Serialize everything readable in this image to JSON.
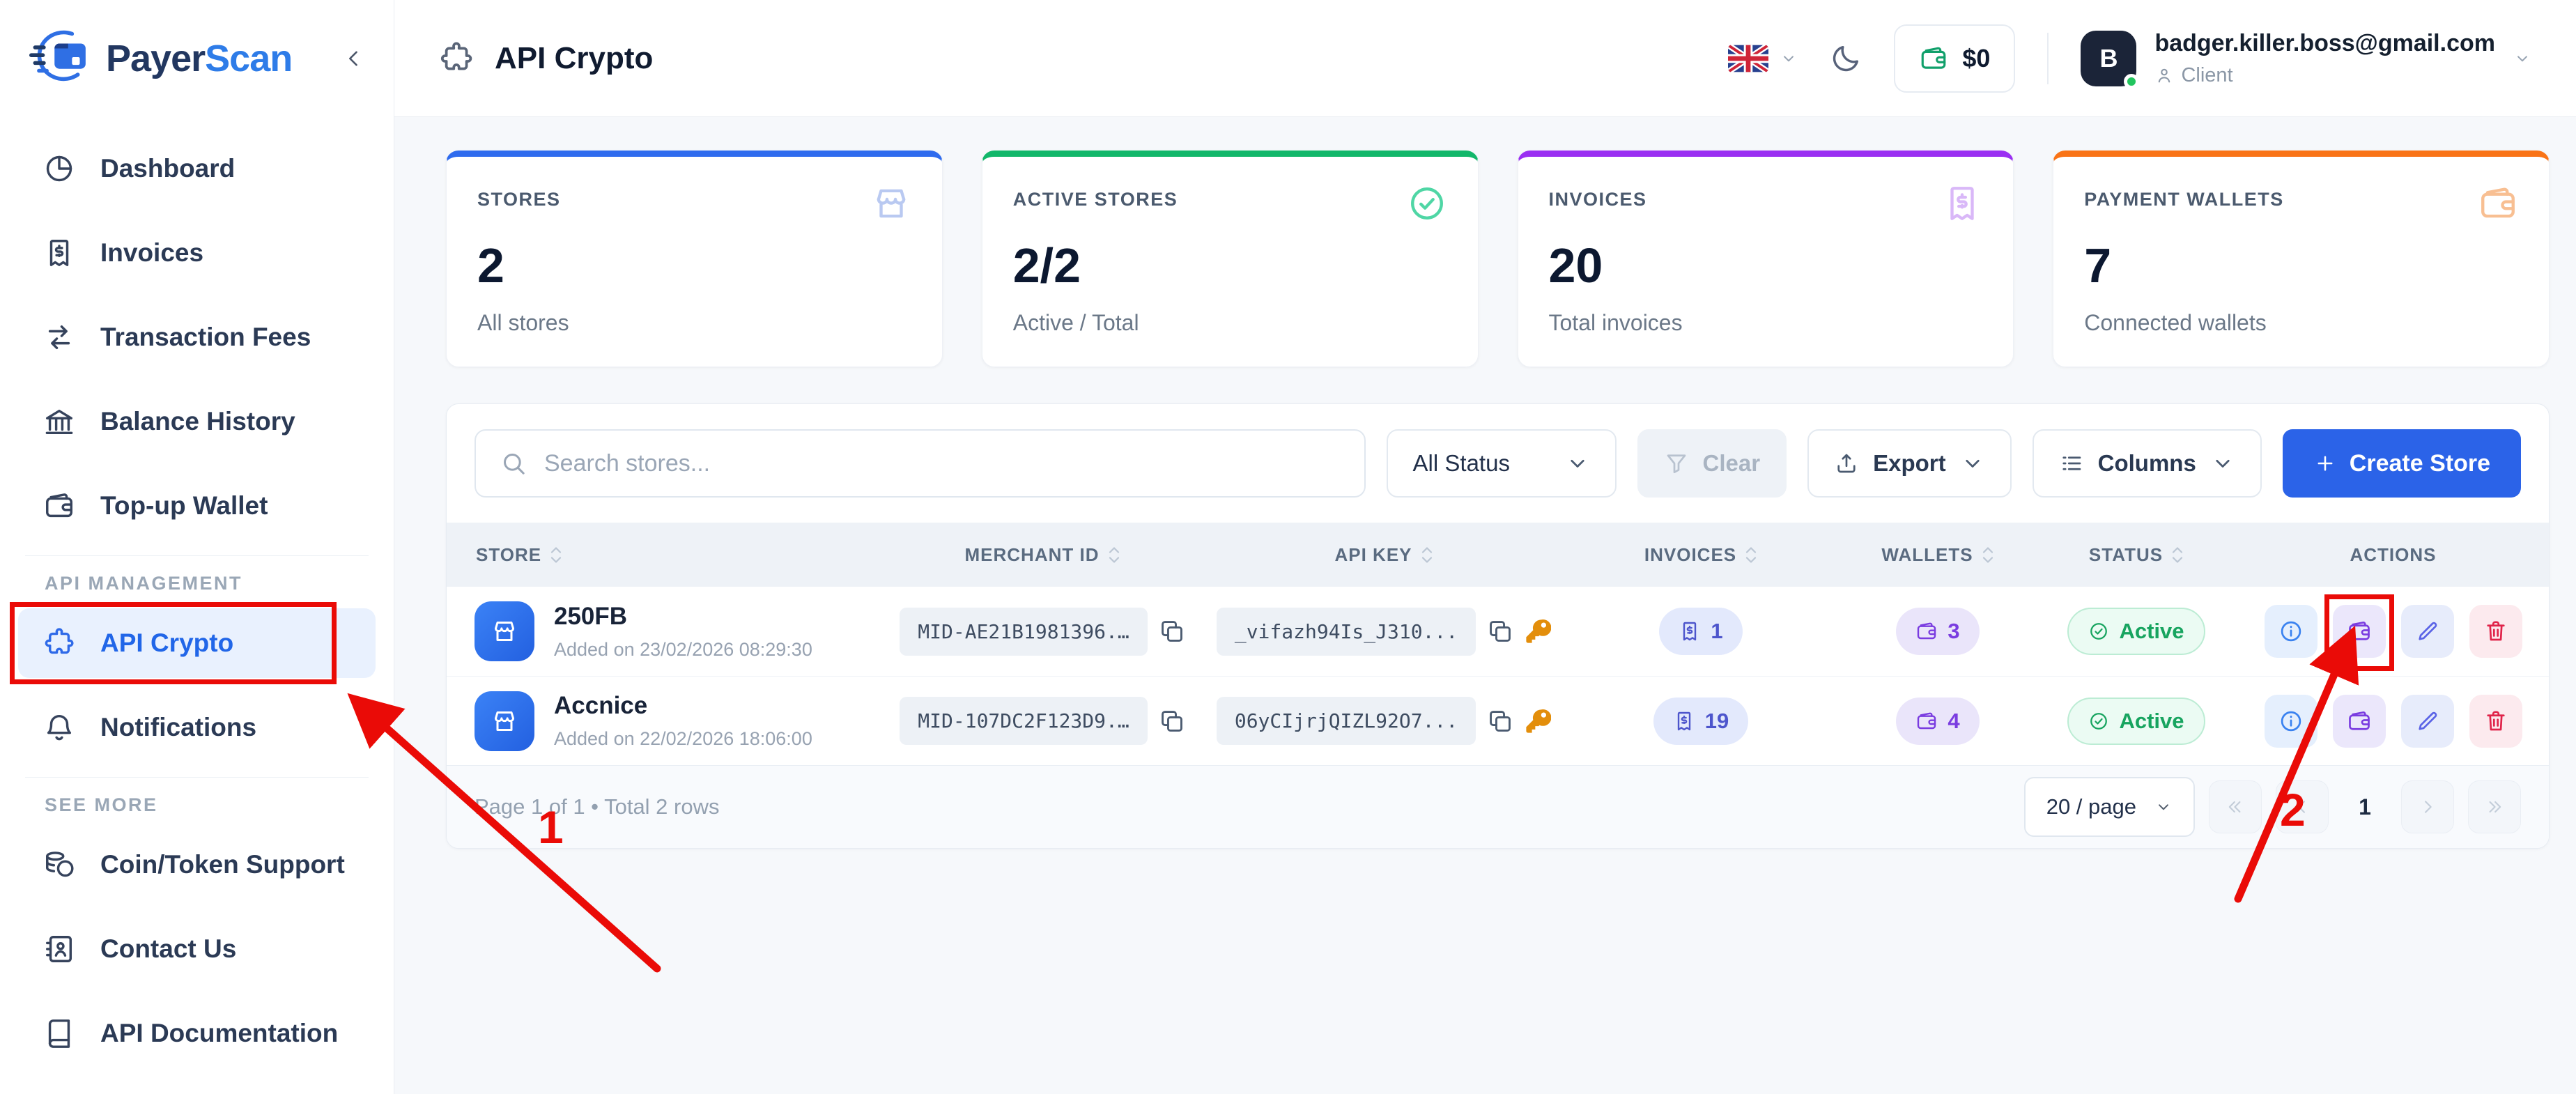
{
  "brand": {
    "name_primary": "Payer",
    "name_accent": "Scan"
  },
  "sidebar": {
    "section_api": "API MANAGEMENT",
    "section_more": "SEE MORE",
    "items_main": [
      {
        "label": "Dashboard",
        "icon": "dashboard"
      },
      {
        "label": "Invoices",
        "icon": "invoices"
      },
      {
        "label": "Transaction Fees",
        "icon": "transfer"
      },
      {
        "label": "Balance History",
        "icon": "bank"
      },
      {
        "label": "Top-up Wallet",
        "icon": "wallet"
      }
    ],
    "items_api": [
      {
        "label": "API Crypto",
        "icon": "puzzle",
        "active": true
      },
      {
        "label": "Notifications",
        "icon": "bell"
      }
    ],
    "items_more": [
      {
        "label": "Coin/Token Support",
        "icon": "coins"
      },
      {
        "label": "Contact Us",
        "icon": "contact"
      },
      {
        "label": "API Documentation",
        "icon": "book"
      }
    ]
  },
  "header": {
    "title": "API Crypto",
    "balance": "$0",
    "avatar_initial": "B",
    "user_email": "badger.killer.boss@gmail.com",
    "user_role": "Client"
  },
  "stats": [
    {
      "label": "STORES",
      "value": "2",
      "subtitle": "All stores",
      "accent": "#2e6bee",
      "icon": "store"
    },
    {
      "label": "ACTIVE STORES",
      "value": "2/2",
      "subtitle": "Active / Total",
      "accent": "#12b76a",
      "icon": "check-circle"
    },
    {
      "label": "INVOICES",
      "value": "20",
      "subtitle": "Total invoices",
      "accent": "#9a2ff2",
      "icon": "invoices"
    },
    {
      "label": "PAYMENT WALLETS",
      "value": "7",
      "subtitle": "Connected wallets",
      "accent": "#f97316",
      "icon": "wallet"
    }
  ],
  "toolbar": {
    "search_placeholder": "Search stores...",
    "status_filter": "All Status",
    "clear_label": "Clear",
    "export_label": "Export",
    "columns_label": "Columns",
    "create_label": "Create Store"
  },
  "table": {
    "columns": [
      "STORE",
      "MERCHANT ID",
      "API KEY",
      "INVOICES",
      "WALLETS",
      "STATUS",
      "ACTIONS"
    ],
    "rows": [
      {
        "name": "250FB",
        "added": "Added on 23/02/2026 08:29:30",
        "merchant_id": "MID-AE21B1981396.…",
        "api_key": "_vifazh94Is_J310...",
        "invoices": "1",
        "wallets": "3",
        "status": "Active"
      },
      {
        "name": "Accnice",
        "added": "Added on 22/02/2026 18:06:00",
        "merchant_id": "MID-107DC2F123D9.…",
        "api_key": "06yCIjrjQIZL92O7...",
        "invoices": "19",
        "wallets": "4",
        "status": "Active"
      }
    ]
  },
  "pagination": {
    "summary": "Page 1 of 1 • Total 2 rows",
    "page_size": "20 / page",
    "current_page": "1"
  },
  "annotations": {
    "step1": "1",
    "step2": "2",
    "color": "#ea0b07"
  }
}
